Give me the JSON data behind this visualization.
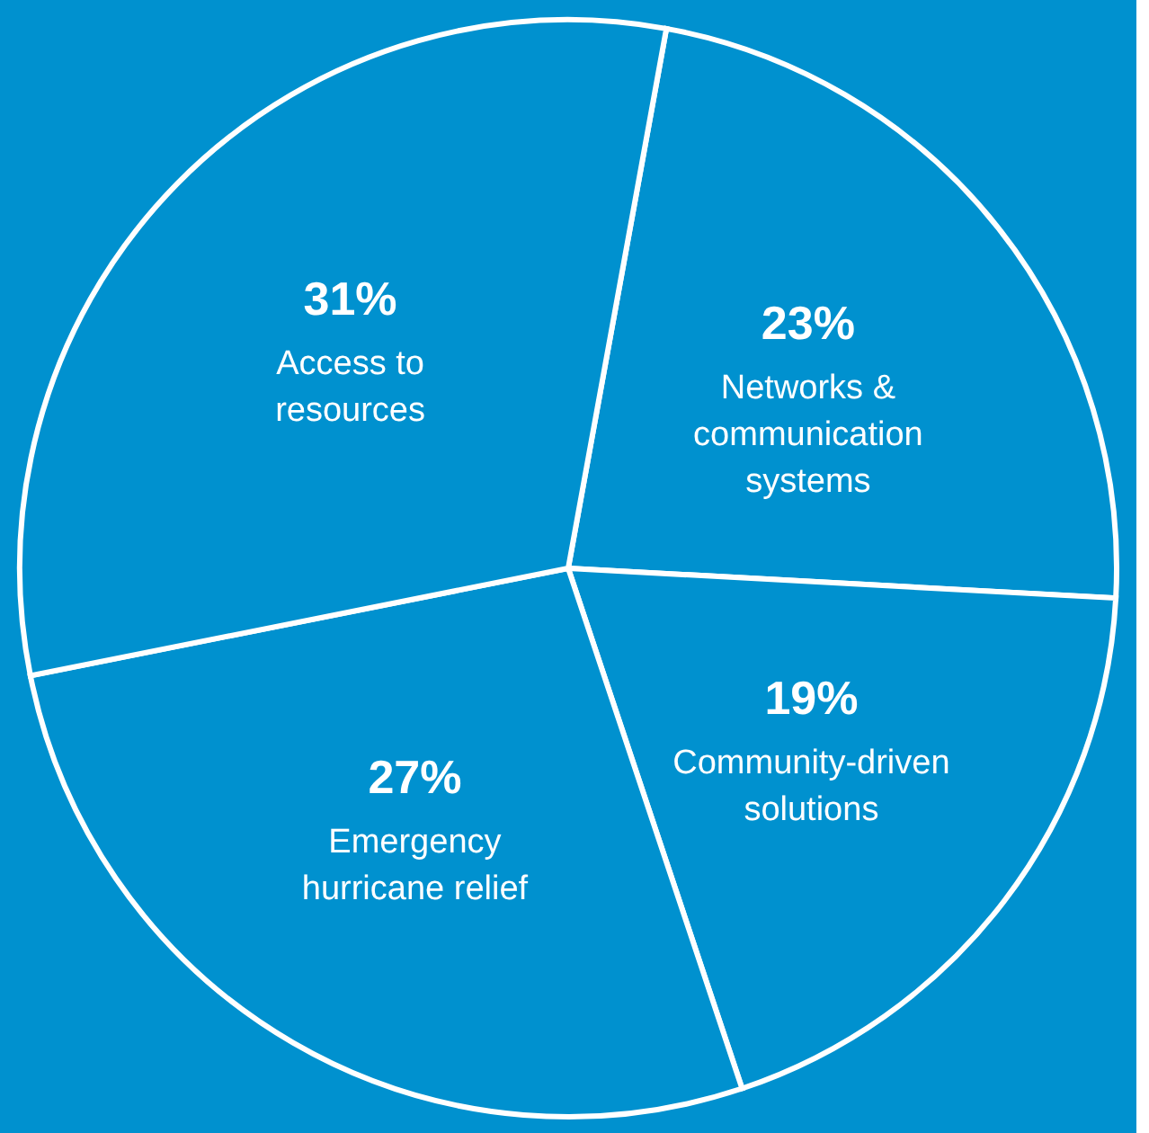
{
  "chart_data": {
    "type": "pie",
    "categories": [
      "Networks & communication systems",
      "Community-driven solutions",
      "Emergency hurricane relief",
      "Access to resources"
    ],
    "values": [
      23,
      19,
      27,
      31
    ],
    "value_labels": [
      "23%",
      "19%",
      "27%",
      "31%"
    ],
    "colors": [
      "#0091cf",
      "#0091cf",
      "#0091cf",
      "#0091cf"
    ],
    "legend": false
  }
}
